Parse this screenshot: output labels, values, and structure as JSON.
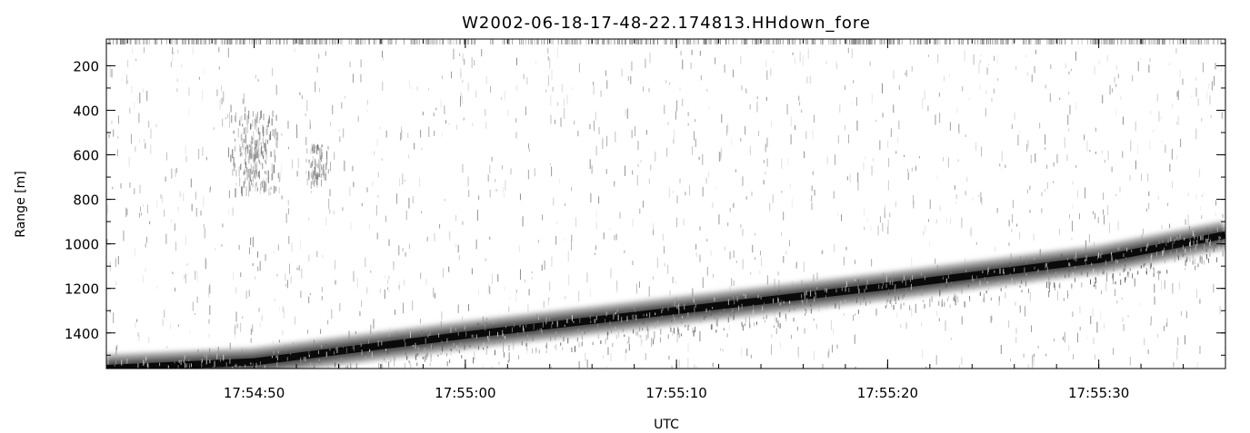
{
  "chart_data": {
    "type": "heatmap",
    "title": "W2002-06-18-17-48-22.174813.HHdown_fore",
    "xlabel": "UTC",
    "ylabel": "Range [m]",
    "colormap": "grayscale-inverted",
    "x_range_seconds": [
      "17:54:43",
      "17:55:36"
    ],
    "ylim": [
      1560,
      80
    ],
    "x_ticks": [
      "17:54:50",
      "17:55:00",
      "17:55:10",
      "17:55:20",
      "17:55:30"
    ],
    "y_ticks": [
      "200",
      "400",
      "600",
      "800",
      "1000",
      "1200",
      "1400"
    ],
    "trace": {
      "name": "",
      "x": [
        "17:54:43",
        "17:54:50",
        "17:55:00",
        "17:55:10",
        "17:55:20",
        "17:55:30",
        "17:55:36"
      ],
      "y": [
        1560,
        1530,
        1410,
        1300,
        1190,
        1070,
        960
      ]
    },
    "clutter_patches": [
      {
        "x": "17:54:50",
        "y_from": 400,
        "y_to": 750
      },
      {
        "x": "17:54:53",
        "y_from": 550,
        "y_to": 720
      }
    ],
    "grid": false
  }
}
